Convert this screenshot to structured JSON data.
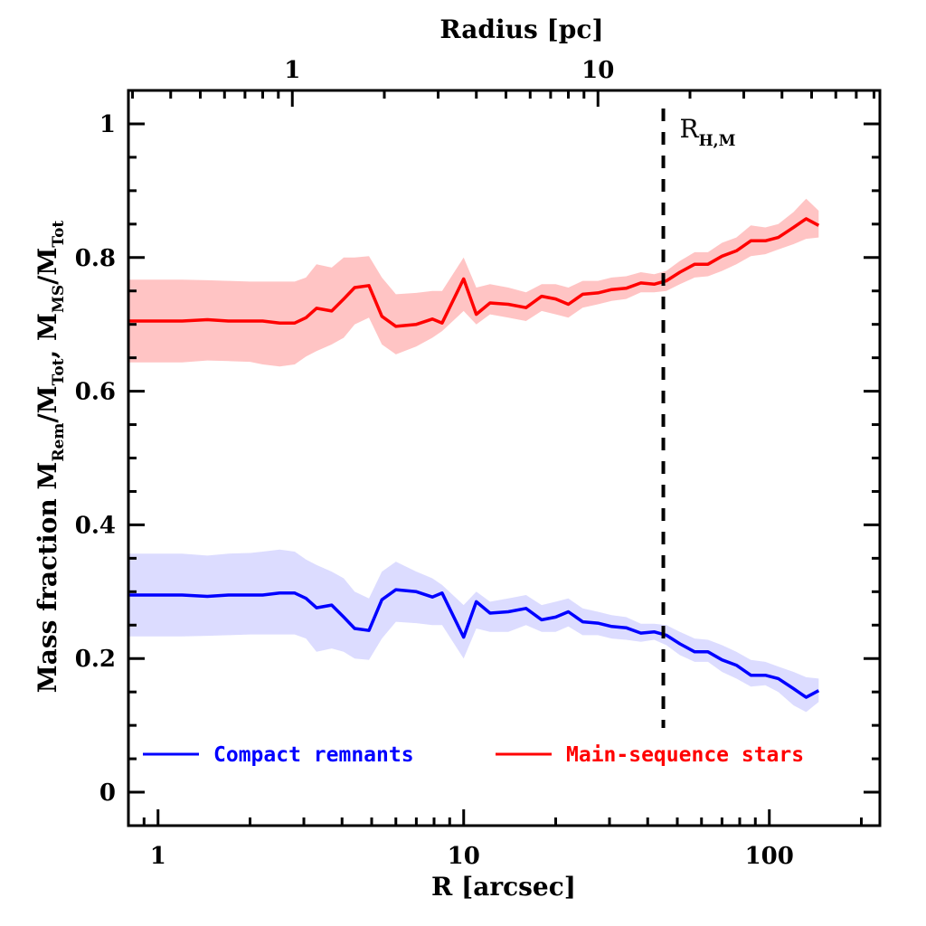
{
  "chart_data": {
    "type": "line",
    "title": "",
    "xlabel": "R [arcsec]",
    "x2label": "Radius [pc]",
    "ylabel_parts": {
      "prefix": "Mass fraction  M",
      "sub1": "Rem",
      "mid1": "/M",
      "sub2": "Tot",
      "mid2": ", M",
      "sub3": "MS",
      "mid3": "/M",
      "sub4": "Tot"
    },
    "xscale": "log",
    "xlim": [
      0.8,
      230
    ],
    "ylim": [
      -0.05,
      1.05
    ],
    "x_ticks": [
      1,
      10,
      100
    ],
    "x_tick_labels": [
      "1",
      "10",
      "100"
    ],
    "x2_ticks_arcsec": [
      2.75,
      27.5
    ],
    "x2_tick_labels": [
      "1",
      "10"
    ],
    "x2_scale_pc_per_arcsec": 0.3636,
    "y_ticks": [
      0,
      0.2,
      0.4,
      0.6,
      0.8,
      1
    ],
    "y_tick_labels": [
      "0",
      "0.2",
      "0.4",
      "0.6",
      "0.8",
      "1"
    ],
    "grid": false,
    "legend_position": "bottom",
    "vline": {
      "x": 45,
      "label_main": "R",
      "label_sub": "H,M"
    },
    "x": [
      0.8,
      1.0,
      1.2,
      1.45,
      1.7,
      2.0,
      2.2,
      2.5,
      2.8,
      3.05,
      3.3,
      3.7,
      4.05,
      4.4,
      4.9,
      5.4,
      6.0,
      7.0,
      7.9,
      8.5,
      10.0,
      11.0,
      12.2,
      14.0,
      16.0,
      18.0,
      20.0,
      22.0,
      24.5,
      27.5,
      30.5,
      34.0,
      38.0,
      42.0,
      46.0,
      51.0,
      57.0,
      63.0,
      70.0,
      78.0,
      87.0,
      97.0,
      107.0,
      120.0,
      132.0,
      145.0
    ],
    "series": [
      {
        "name": "Compact remnants",
        "color": "#0000ff",
        "band_color": "#dcdcff",
        "values": [
          0.295,
          0.295,
          0.295,
          0.293,
          0.295,
          0.295,
          0.295,
          0.298,
          0.298,
          0.29,
          0.276,
          0.28,
          0.262,
          0.245,
          0.242,
          0.288,
          0.303,
          0.3,
          0.292,
          0.298,
          0.232,
          0.285,
          0.268,
          0.27,
          0.275,
          0.258,
          0.262,
          0.27,
          0.255,
          0.253,
          0.248,
          0.246,
          0.238,
          0.24,
          0.235,
          0.222,
          0.21,
          0.21,
          0.198,
          0.19,
          0.175,
          0.175,
          0.17,
          0.155,
          0.142,
          0.152
        ],
        "lower": [
          0.233,
          0.233,
          0.233,
          0.234,
          0.235,
          0.236,
          0.236,
          0.236,
          0.236,
          0.23,
          0.21,
          0.215,
          0.21,
          0.2,
          0.198,
          0.23,
          0.255,
          0.253,
          0.25,
          0.25,
          0.2,
          0.245,
          0.24,
          0.24,
          0.25,
          0.24,
          0.24,
          0.248,
          0.235,
          0.235,
          0.23,
          0.228,
          0.225,
          0.228,
          0.22,
          0.205,
          0.195,
          0.195,
          0.18,
          0.17,
          0.158,
          0.16,
          0.15,
          0.13,
          0.12,
          0.135
        ],
        "upper": [
          0.357,
          0.357,
          0.357,
          0.354,
          0.357,
          0.358,
          0.36,
          0.363,
          0.36,
          0.348,
          0.34,
          0.33,
          0.32,
          0.3,
          0.29,
          0.33,
          0.345,
          0.33,
          0.32,
          0.31,
          0.28,
          0.3,
          0.285,
          0.29,
          0.295,
          0.28,
          0.285,
          0.29,
          0.275,
          0.27,
          0.265,
          0.262,
          0.252,
          0.252,
          0.25,
          0.24,
          0.23,
          0.228,
          0.22,
          0.21,
          0.198,
          0.195,
          0.188,
          0.18,
          0.172,
          0.17
        ]
      },
      {
        "name": "Main-sequence stars",
        "color": "#ff0000",
        "band_color": "#ffc4c4",
        "values": [
          0.705,
          0.705,
          0.705,
          0.707,
          0.705,
          0.705,
          0.705,
          0.702,
          0.702,
          0.71,
          0.724,
          0.72,
          0.738,
          0.755,
          0.758,
          0.712,
          0.697,
          0.7,
          0.708,
          0.702,
          0.768,
          0.715,
          0.732,
          0.73,
          0.725,
          0.742,
          0.738,
          0.73,
          0.745,
          0.747,
          0.752,
          0.754,
          0.762,
          0.76,
          0.765,
          0.778,
          0.79,
          0.79,
          0.802,
          0.81,
          0.825,
          0.825,
          0.83,
          0.845,
          0.858,
          0.848
        ],
        "lower": [
          0.643,
          0.643,
          0.643,
          0.646,
          0.645,
          0.644,
          0.64,
          0.637,
          0.64,
          0.652,
          0.66,
          0.67,
          0.68,
          0.7,
          0.71,
          0.67,
          0.655,
          0.667,
          0.68,
          0.69,
          0.72,
          0.7,
          0.715,
          0.71,
          0.705,
          0.72,
          0.715,
          0.71,
          0.725,
          0.73,
          0.735,
          0.738,
          0.748,
          0.748,
          0.75,
          0.76,
          0.77,
          0.772,
          0.78,
          0.79,
          0.802,
          0.805,
          0.812,
          0.82,
          0.828,
          0.83
        ],
        "upper": [
          0.767,
          0.767,
          0.767,
          0.766,
          0.765,
          0.764,
          0.764,
          0.764,
          0.764,
          0.77,
          0.79,
          0.785,
          0.8,
          0.8,
          0.802,
          0.77,
          0.745,
          0.747,
          0.75,
          0.75,
          0.8,
          0.755,
          0.76,
          0.755,
          0.748,
          0.76,
          0.76,
          0.755,
          0.765,
          0.765,
          0.77,
          0.772,
          0.778,
          0.775,
          0.78,
          0.795,
          0.808,
          0.808,
          0.822,
          0.83,
          0.848,
          0.845,
          0.85,
          0.868,
          0.888,
          0.87
        ]
      }
    ]
  }
}
